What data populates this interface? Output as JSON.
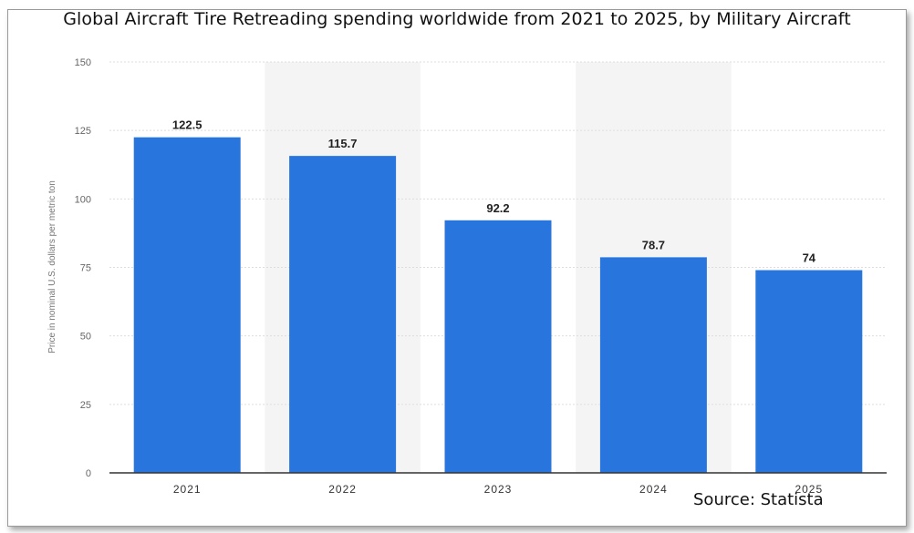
{
  "chart_data": {
    "type": "bar",
    "title": "Global Aircraft Tire Retreading spending worldwide from 2021 to 2025, by Military Aircraft",
    "categories": [
      "2021",
      "2022",
      "2023",
      "2024",
      "2025"
    ],
    "values": [
      122.5,
      115.7,
      92.2,
      78.7,
      74
    ],
    "data_labels": [
      "122.5",
      "115.7",
      "92.2",
      "78.7",
      "74"
    ],
    "xlabel": "",
    "ylabel": "Price in nominal U.S. dollars per metric ton",
    "ylim": [
      0,
      150
    ],
    "yticks": [
      0,
      25,
      50,
      75,
      100,
      125,
      150
    ],
    "grid": true,
    "legend": "none",
    "bar_color": "#2876dd",
    "source": "Source: Statista"
  }
}
